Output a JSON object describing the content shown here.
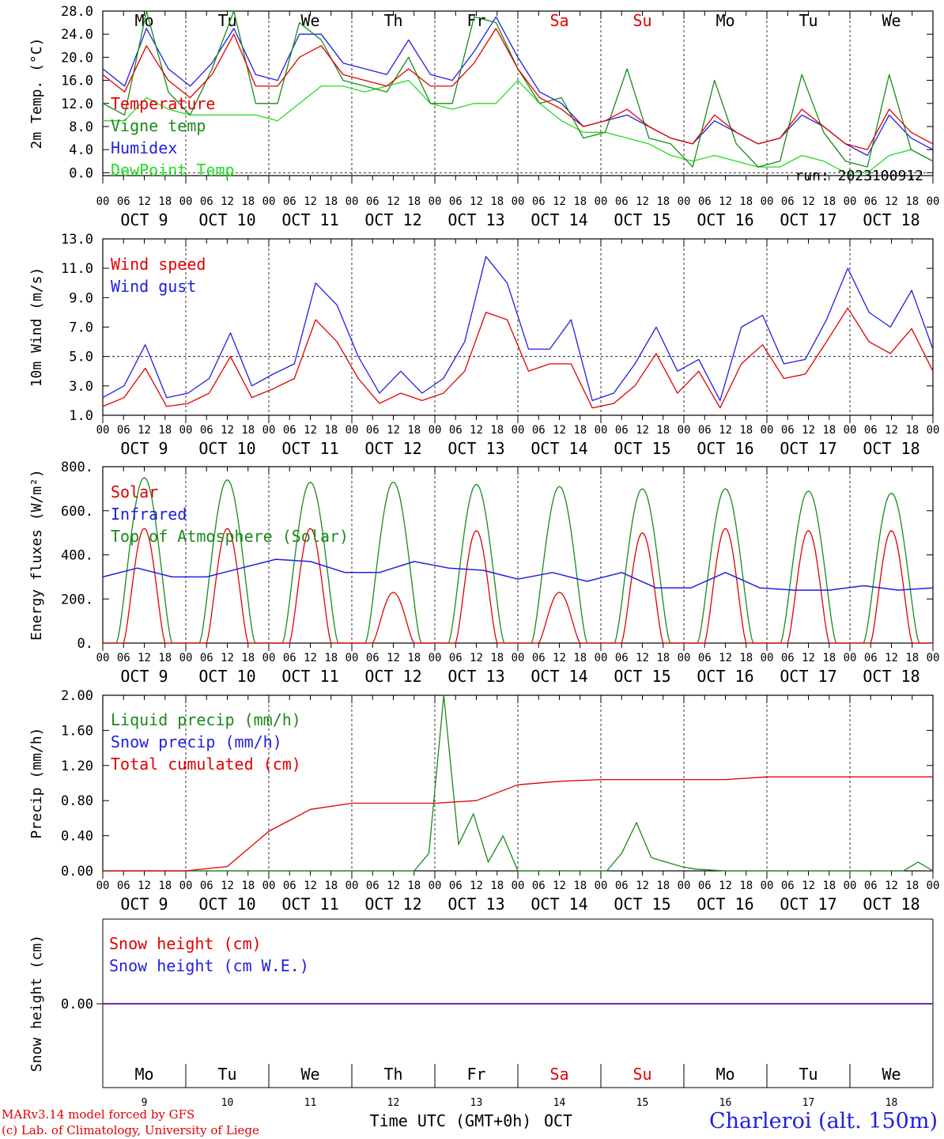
{
  "days": [
    "OCT  9",
    "OCT 10",
    "OCT 11",
    "OCT 12",
    "OCT 13",
    "OCT 14",
    "OCT 15",
    "OCT 16",
    "OCT 17",
    "OCT 18"
  ],
  "weekdays": [
    "Mo",
    "Tu",
    "We",
    "Th",
    "Fr",
    "Sa",
    "Su",
    "Mo",
    "Tu",
    "We"
  ],
  "weekend_flags": [
    false,
    false,
    false,
    false,
    false,
    true,
    true,
    false,
    false,
    false
  ],
  "hour_labels": [
    "00",
    "06",
    "12",
    "18"
  ],
  "final_hour_label": "00",
  "bottom_day_numbers": [
    "9",
    "10",
    "11",
    "12",
    "13",
    "14",
    "15",
    "16",
    "17",
    "18"
  ],
  "x_axis_label": "Time UTC (GMT+0h)",
  "x_axis_month": "OCT",
  "credit_line1": "MARv3.14 model forced by GFS",
  "credit_line2": "(c) Lab. of Climatology, University of Liege",
  "station": "Charleroi (alt. 150m)",
  "colors": {
    "red": "#e00000",
    "green": "#1a8a1a",
    "blue": "#2020e0",
    "lightgreen": "#22dd22",
    "purple": "#7a2a9a"
  },
  "chart_data": [
    {
      "type": "line",
      "ylabel": "2m Temp. (°C)",
      "ylim": [
        -0.5,
        28.0
      ],
      "yticks": [
        "0.0",
        "4.0",
        "8.0",
        "12.0",
        "16.0",
        "20.0",
        "24.0",
        "28.0"
      ],
      "run_label": "run: 2023100912",
      "reference_line": 0.0,
      "x_hours": [
        0,
        6,
        12,
        18,
        24,
        30,
        36,
        42,
        48,
        54,
        60,
        66,
        72,
        78,
        84,
        90,
        96,
        102,
        108,
        114,
        120,
        126,
        132,
        138,
        144,
        150,
        156,
        162,
        168,
        174,
        180,
        186,
        192,
        198,
        204,
        210,
        216,
        222,
        228,
        234,
        240
      ],
      "series": [
        {
          "name": "Temperature",
          "color": "red",
          "values": [
            17,
            14,
            22,
            16,
            13,
            17,
            24,
            15,
            15,
            20,
            22,
            17,
            16,
            15,
            18,
            15,
            15,
            19,
            25,
            18,
            13,
            11,
            8,
            9,
            11,
            8,
            6,
            5,
            10,
            7,
            5,
            6,
            11,
            8,
            5,
            4,
            11,
            7,
            5
          ]
        },
        {
          "name": "Vigne temp",
          "color": "green",
          "values": [
            12,
            10,
            28,
            14,
            10,
            18,
            28,
            12,
            12,
            26,
            23,
            16,
            15,
            14,
            20,
            12,
            12,
            27,
            26,
            18,
            12,
            13,
            6,
            7,
            18,
            6,
            5,
            1,
            16,
            5,
            1,
            2,
            17,
            7,
            2,
            1,
            17,
            4,
            2
          ]
        },
        {
          "name": "Humidex",
          "color": "blue",
          "values": [
            18,
            15,
            25,
            18,
            15,
            19,
            25,
            17,
            16,
            24,
            24,
            19,
            18,
            17,
            23,
            17,
            16,
            21,
            27,
            20,
            14,
            12,
            8,
            9,
            10,
            8,
            6,
            5,
            9,
            7,
            5,
            6,
            10,
            8,
            5,
            3,
            10,
            6,
            4
          ]
        },
        {
          "name": "DewPoint Temp",
          "color": "lightgreen",
          "values": [
            9,
            9,
            13,
            11,
            10,
            10,
            10,
            10,
            9,
            12,
            15,
            15,
            14,
            15,
            16,
            12,
            11,
            12,
            12,
            16,
            12,
            9,
            7,
            7,
            6,
            5,
            3,
            2,
            3,
            2,
            1,
            1,
            3,
            2,
            0,
            0,
            3,
            4,
            2
          ]
        }
      ]
    },
    {
      "type": "line",
      "ylabel": "10m Wind (m/s)",
      "ylim": [
        1.0,
        13.0
      ],
      "yticks": [
        "1.0",
        "3.0",
        "5.0",
        "7.0",
        "9.0",
        "11.0",
        "13.0"
      ],
      "reference_line": 5.0,
      "series": [
        {
          "name": "Wind speed",
          "color": "red",
          "values": [
            1.6,
            2.2,
            4.2,
            1.6,
            1.8,
            2.5,
            5.0,
            2.2,
            2.8,
            3.5,
            7.5,
            6.0,
            3.5,
            1.8,
            2.5,
            2.0,
            2.5,
            4.0,
            8.0,
            7.5,
            4.0,
            4.5,
            4.5,
            1.5,
            1.8,
            3.0,
            5.2,
            2.5,
            4.0,
            1.5,
            4.5,
            5.8,
            3.5,
            3.8,
            6.0,
            8.3,
            6.0,
            5.2,
            6.9,
            4.0
          ]
        },
        {
          "name": "Wind gust",
          "color": "blue",
          "values": [
            2.2,
            3.0,
            5.8,
            2.2,
            2.5,
            3.5,
            6.6,
            3.0,
            3.8,
            4.5,
            10.0,
            8.5,
            5.0,
            2.5,
            4.0,
            2.5,
            3.5,
            6.0,
            11.8,
            10.0,
            5.5,
            5.5,
            7.5,
            2.0,
            2.5,
            4.5,
            7.0,
            4.0,
            4.8,
            2.0,
            7.0,
            7.8,
            4.5,
            4.8,
            7.5,
            11.0,
            8.0,
            7.0,
            9.5,
            5.5
          ]
        }
      ]
    },
    {
      "type": "line",
      "ylabel": "Energy fluxes (W/m²)",
      "ylim": [
        0,
        800
      ],
      "yticks": [
        "0.",
        "200.",
        "400.",
        "600.",
        "800."
      ],
      "series": [
        {
          "name": "Solar",
          "color": "red",
          "peaks": [
            520,
            520,
            520,
            230,
            510,
            230,
            500,
            520,
            510,
            510
          ]
        },
        {
          "name": "Infrared",
          "color": "blue",
          "values": [
            300,
            340,
            300,
            300,
            340,
            380,
            370,
            320,
            320,
            370,
            340,
            330,
            290,
            320,
            280,
            320,
            250,
            250,
            320,
            250,
            240,
            240,
            260,
            240,
            250
          ]
        },
        {
          "name": "Top of Atmosphere (Solar)",
          "color": "green",
          "peaks": [
            750,
            740,
            730,
            730,
            720,
            710,
            700,
            700,
            690,
            680
          ]
        }
      ]
    },
    {
      "type": "line",
      "ylabel": "Precip (mm/h)",
      "ylim": [
        0.0,
        2.0
      ],
      "yticks": [
        "0.00",
        "0.40",
        "0.80",
        "1.20",
        "1.60",
        "2.00"
      ],
      "series": [
        {
          "name": "Liquid precip (mm/h)",
          "color": "green",
          "values": [
            0,
            0,
            0,
            0,
            0,
            0,
            0,
            0,
            0,
            0,
            0,
            0,
            0,
            0,
            0,
            0,
            0,
            0,
            0,
            0,
            0,
            0,
            0.2,
            2.0,
            0.3,
            0.65,
            0.1,
            0.4,
            0,
            0,
            0,
            0,
            0,
            0,
            0,
            0.2,
            0.55,
            0.15,
            0.1,
            0.05,
            0.02,
            0.01,
            0,
            0,
            0,
            0,
            0,
            0,
            0,
            0,
            0,
            0,
            0,
            0,
            0,
            0.1,
            0
          ]
        },
        {
          "name": "Snow precip (mm/h)",
          "color": "blue",
          "values": []
        },
        {
          "name": "Total cumulated (cm)",
          "color": "red",
          "values": [
            0,
            0,
            0,
            0.05,
            0.45,
            0.7,
            0.77,
            0.77,
            0.77,
            0.8,
            0.98,
            1.02,
            1.04,
            1.04,
            1.04,
            1.04,
            1.07,
            1.07,
            1.07,
            1.07,
            1.07
          ]
        }
      ]
    },
    {
      "type": "line",
      "ylabel": "Snow height (cm)",
      "yticks": [
        "0.00"
      ],
      "series": [
        {
          "name": "Snow height (cm)",
          "color": "red",
          "values": [
            0
          ]
        },
        {
          "name": "Snow height (cm W.E.)",
          "color": "blue",
          "values": [
            0
          ]
        }
      ]
    }
  ]
}
